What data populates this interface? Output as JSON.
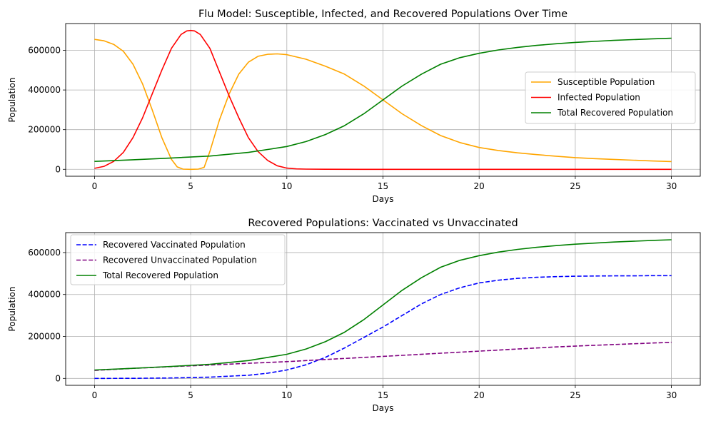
{
  "chart_data": [
    {
      "type": "line",
      "title": "Flu Model: Susceptible, Infected, and Recovered Populations Over Time",
      "xlabel": "Days",
      "ylabel": "Population",
      "xlim": [
        -1.5,
        31.5
      ],
      "ylim": [
        -35000,
        735000
      ],
      "xticks": [
        0,
        5,
        10,
        15,
        20,
        25,
        30
      ],
      "yticks": [
        0,
        200000,
        400000,
        600000
      ],
      "grid": true,
      "legend_position": "center-right",
      "series": [
        {
          "name": "Susceptible Population",
          "color": "#ffa500",
          "dash": "solid",
          "x": [
            0,
            0.5,
            1,
            1.5,
            2,
            2.5,
            3,
            3.5,
            4,
            4.3,
            4.6,
            5,
            5.4,
            5.7,
            6,
            6.5,
            7,
            7.5,
            8,
            8.5,
            9,
            9.5,
            10,
            11,
            12,
            13,
            14,
            15,
            16,
            17,
            18,
            19,
            20,
            21,
            22,
            23,
            24,
            25,
            26,
            27,
            28,
            29,
            30
          ],
          "y": [
            655000,
            648000,
            630000,
            595000,
            530000,
            430000,
            300000,
            160000,
            50000,
            12000,
            1000,
            0,
            1000,
            10000,
            90000,
            250000,
            380000,
            480000,
            540000,
            570000,
            580000,
            582000,
            578000,
            555000,
            520000,
            480000,
            420000,
            350000,
            280000,
            220000,
            170000,
            135000,
            110000,
            95000,
            83000,
            74000,
            66000,
            59000,
            54000,
            50000,
            46000,
            42000,
            39000
          ]
        },
        {
          "name": "Infected Population",
          "color": "#ff0000",
          "dash": "solid",
          "x": [
            0,
            0.5,
            1,
            1.5,
            2,
            2.5,
            3,
            3.5,
            4,
            4.5,
            4.8,
            5,
            5.2,
            5.5,
            6,
            6.5,
            7,
            7.5,
            8,
            8.5,
            9,
            9.5,
            10,
            10.5,
            11,
            12,
            15,
            20,
            25,
            30
          ],
          "y": [
            5000,
            15000,
            40000,
            85000,
            160000,
            260000,
            380000,
            500000,
            610000,
            680000,
            698000,
            700000,
            698000,
            680000,
            610000,
            490000,
            370000,
            260000,
            160000,
            90000,
            45000,
            18000,
            6000,
            2000,
            1000,
            200,
            0,
            0,
            0,
            0
          ]
        },
        {
          "name": "Total Recovered Population",
          "color": "#008000",
          "dash": "solid",
          "x": [
            0,
            2,
            4,
            6,
            8,
            9,
            10,
            11,
            12,
            13,
            14,
            15,
            16,
            17,
            18,
            19,
            20,
            21,
            22,
            23,
            24,
            25,
            26,
            27,
            28,
            29,
            30
          ],
          "y": [
            40000,
            48000,
            57000,
            67000,
            85000,
            100000,
            115000,
            140000,
            175000,
            220000,
            280000,
            350000,
            420000,
            480000,
            530000,
            563000,
            585000,
            602000,
            615000,
            625000,
            633000,
            640000,
            645000,
            650000,
            654000,
            658000,
            661000
          ]
        }
      ]
    },
    {
      "type": "line",
      "title": "Recovered Populations: Vaccinated vs Unvaccinated",
      "xlabel": "Days",
      "ylabel": "Population",
      "xlim": [
        -1.5,
        31.5
      ],
      "ylim": [
        -33000,
        695000
      ],
      "xticks": [
        0,
        5,
        10,
        15,
        20,
        25,
        30
      ],
      "yticks": [
        0,
        200000,
        400000,
        600000
      ],
      "grid": true,
      "legend_position": "upper-left",
      "series": [
        {
          "name": "Recovered Vaccinated Population",
          "color": "#0000ff",
          "dash": "dashed",
          "x": [
            0,
            2,
            4,
            6,
            8,
            9,
            10,
            11,
            12,
            13,
            14,
            15,
            16,
            17,
            18,
            19,
            20,
            21,
            22,
            23,
            24,
            25,
            26,
            27,
            28,
            29,
            30
          ],
          "y": [
            0,
            500,
            2000,
            6000,
            15000,
            25000,
            40000,
            65000,
            100000,
            145000,
            195000,
            245000,
            300000,
            355000,
            400000,
            432000,
            455000,
            468000,
            477000,
            482000,
            485000,
            487000,
            488000,
            489000,
            489000,
            490000,
            490000
          ]
        },
        {
          "name": "Recovered Unvaccinated Population",
          "color": "#800080",
          "dash": "dashed",
          "x": [
            0,
            2,
            4,
            6,
            8,
            10,
            12,
            14,
            16,
            18,
            20,
            22,
            24,
            26,
            28,
            30
          ],
          "y": [
            38000,
            48000,
            56000,
            64000,
            72000,
            80000,
            90000,
            100000,
            110000,
            120000,
            130000,
            140000,
            150000,
            158000,
            165000,
            172000
          ]
        },
        {
          "name": "Total Recovered Population",
          "color": "#008000",
          "dash": "solid",
          "x": [
            0,
            2,
            4,
            6,
            8,
            9,
            10,
            11,
            12,
            13,
            14,
            15,
            16,
            17,
            18,
            19,
            20,
            21,
            22,
            23,
            24,
            25,
            26,
            27,
            28,
            29,
            30
          ],
          "y": [
            40000,
            48000,
            57000,
            67000,
            85000,
            100000,
            115000,
            140000,
            175000,
            220000,
            280000,
            350000,
            420000,
            480000,
            530000,
            563000,
            585000,
            602000,
            615000,
            625000,
            633000,
            640000,
            645000,
            650000,
            654000,
            658000,
            661000
          ]
        }
      ]
    }
  ]
}
